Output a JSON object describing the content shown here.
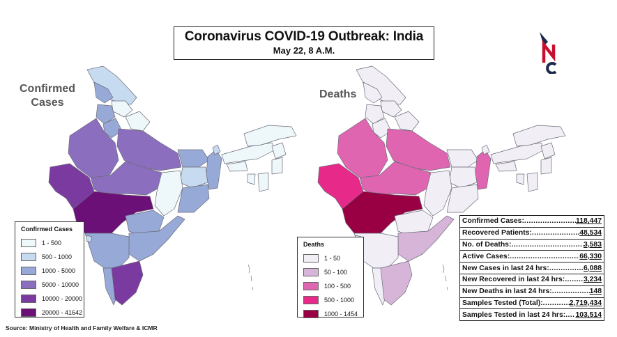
{
  "title": "Coronavirus COVID-19 Outbreak: India",
  "subtitle": "May 22, 8 A.M.",
  "logo": {
    "letters": "NC",
    "colors": {
      "red": "#c8102e",
      "navy": "#1b2a4a"
    }
  },
  "maps": {
    "confirmed": {
      "label": "Confirmed Cases",
      "legend": {
        "title": "Confirmed Cases",
        "items": [
          {
            "label": "1 - 500",
            "color": "#eef7fa"
          },
          {
            "label": "500 - 1000",
            "color": "#c6dbef"
          },
          {
            "label": "1000 - 5000",
            "color": "#97a9d6"
          },
          {
            "label": "5000 - 10000",
            "color": "#8b6fbe"
          },
          {
            "label": "10000 - 20000",
            "color": "#7b3aa0"
          },
          {
            "label": "20000 - 41642",
            "color": "#6b1077"
          }
        ]
      }
    },
    "deaths": {
      "label": "Deaths",
      "legend": {
        "title": "Deaths",
        "items": [
          {
            "label": "1 - 50",
            "color": "#f1eef6"
          },
          {
            "label": "50 - 100",
            "color": "#d7b5d8"
          },
          {
            "label": "100 - 500",
            "color": "#df65b0"
          },
          {
            "label": "500 - 1000",
            "color": "#e7298a"
          },
          {
            "label": "1000 - 1454",
            "color": "#980043"
          }
        ]
      }
    }
  },
  "stats": [
    {
      "label": "Confirmed Cases:",
      "value": "118,447"
    },
    {
      "label": "Recovered Patients:",
      "value": "48,534"
    },
    {
      "label": "No. of Deaths:",
      "value": "3,583"
    },
    {
      "label": "Active Cases:",
      "value": "66,330"
    },
    {
      "label": "New Cases in last 24 hrs:",
      "value": "6,088"
    },
    {
      "label": "New Recovered in last 24 hrs:",
      "value": "3,234"
    },
    {
      "label": "New Deaths in last 24 hrs:",
      "value": "148"
    },
    {
      "label": "Samples Tested (Total):",
      "value": "2,719,434"
    },
    {
      "label": "Samples Tested in last 24 hrs:",
      "value": "103,514"
    }
  ],
  "source": "Source: Ministry of Health and Family Welfare & ICMR"
}
